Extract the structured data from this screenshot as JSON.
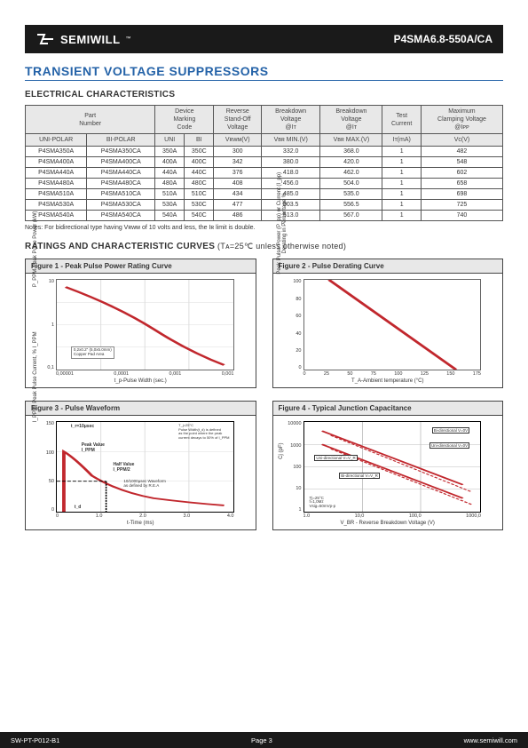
{
  "header": {
    "brand": "SEMIWILL",
    "tm": "™",
    "part": "P4SMA6.8-550A/CA"
  },
  "title": "TRANSIENT VOLTAGE SUPPRESSORS",
  "sections": {
    "ec": "ELECTRICAL CHARACTERISTICS",
    "curves": "RATINGS AND CHARACTERISTIC CURVES",
    "curves_note": " (Tᴀ=25℃ unless otherwise noted)"
  },
  "table": {
    "head": {
      "part": "Part\nNumber",
      "marking": "Device\nMarking\nCode",
      "standoff": "Reverse\nStand-Off\nVoltage",
      "br_min": "Breakdown\nVoltage\n@Iᴛ",
      "br_max": "Breakdown\nVoltage\n@Iᴛ",
      "test": "Test\nCurrent",
      "clamp": "Maximum\nClamping Voltage\n@Iᴘᴘ",
      "sub_uni": "UNI-POLAR",
      "sub_bi": "BI-POLAR",
      "sub_uni2": "UNI",
      "sub_bi2": "BI",
      "sub_vrwm": "Vʀᴡᴍ(V)",
      "sub_vbrmin": "Vʙʀ MIN.(V)",
      "sub_vbrmax": "Vʙʀ MAX.(V)",
      "sub_it": "Iᴛ(mA)",
      "sub_vc": "Vᴄ(V)"
    },
    "rows": [
      {
        "uni": "P4SMA350A",
        "bi": "P4SMA350CA",
        "m1": "350A",
        "m2": "350C",
        "v1": "300",
        "v2": "332.0",
        "v3": "368.0",
        "it": "1",
        "vc": "482"
      },
      {
        "uni": "P4SMA400A",
        "bi": "P4SMA400CA",
        "m1": "400A",
        "m2": "400C",
        "v1": "342",
        "v2": "380.0",
        "v3": "420.0",
        "it": "1",
        "vc": "548"
      },
      {
        "uni": "P4SMA440A",
        "bi": "P4SMA440CA",
        "m1": "440A",
        "m2": "440C",
        "v1": "376",
        "v2": "418.0",
        "v3": "462.0",
        "it": "1",
        "vc": "602"
      },
      {
        "uni": "P4SMA480A",
        "bi": "P4SMA480CA",
        "m1": "480A",
        "m2": "480C",
        "v1": "408",
        "v2": "456.0",
        "v3": "504.0",
        "it": "1",
        "vc": "658"
      },
      {
        "uni": "P4SMA510A",
        "bi": "P4SMA510CA",
        "m1": "510A",
        "m2": "510C",
        "v1": "434",
        "v2": "485.0",
        "v3": "535.0",
        "it": "1",
        "vc": "698"
      },
      {
        "uni": "P4SMA530A",
        "bi": "P4SMA530CA",
        "m1": "530A",
        "m2": "530C",
        "v1": "477",
        "v2": "503.5",
        "v3": "556.5",
        "it": "1",
        "vc": "725"
      },
      {
        "uni": "P4SMA540A",
        "bi": "P4SMA540CA",
        "m1": "540A",
        "m2": "540C",
        "v1": "486",
        "v2": "513.0",
        "v3": "567.0",
        "it": "1",
        "vc": "740"
      }
    ]
  },
  "note": "Notes: For bidirectional type having Vʀᴡᴍ of 10 volts and less, the Iʀ limit is double.",
  "figures": {
    "f1": {
      "title": "Figure 1 - Peak Pulse Power Rating Curve",
      "ylabel": "P_PPM-Peak Pulse Power (kW)",
      "xlabel": "t_p-Pulse Width (sec.)",
      "yticks": [
        "10",
        "1",
        "0,1"
      ],
      "xticks": [
        "0,00001",
        "0,0001",
        "0,001",
        "0,001"
      ],
      "note1": "0,2x0.2\" (5,0x5.0mm)",
      "note2": "Copper Pad Area",
      "line_color": "#c1272d"
    },
    "f2": {
      "title": "Figure 2 - Pulse Derating Curve",
      "ylabel": "Peak Pulse Power (P_pp) or Current (I_pp)\nDerating in Percentage %",
      "xlabel": "T_A-Ambient temperature (°C)",
      "yticks": [
        "100",
        "80",
        "60",
        "40",
        "20",
        "0"
      ],
      "xticks": [
        "0",
        "25",
        "50",
        "75",
        "100",
        "125",
        "150",
        "175"
      ],
      "line_color": "#c1272d"
    },
    "f3": {
      "title": "Figure 3 - Pulse Waveform",
      "ylabel": "I_PPM: Peak Pulse Current, % I_PPM",
      "xlabel": "t-Time (ms)",
      "yticks": [
        "150",
        "100",
        "50",
        "0"
      ],
      "xticks": [
        "0",
        "1.0",
        "2.0",
        "3.0",
        "4.0"
      ],
      "ann_tr": "t_r=10μsec",
      "ann_pv": "Peak Value\nI_PPM",
      "ann_hv": "Half Value\nI_PPM/2",
      "ann_td": "t_d",
      "ann_cond1": "T_j=25°C\nPulse Width(t_d) is defined\nas the point where the peak\ncurrent decays to 50% of I_PPM",
      "ann_cond2": "10/1000μsec Waveform\nas defined by R.E.A",
      "line_color": "#c1272d"
    },
    "f4": {
      "title": "Figure 4 - Typical Junction Capacitance",
      "ylabel": "Cj (pF)",
      "xlabel": "V_BR - Reverse Breakdown Voltage (V)",
      "yticks": [
        "10000",
        "1000",
        "100",
        "10",
        "1"
      ],
      "xticks": [
        "1.0",
        "10,0",
        "100,0",
        "1000,0"
      ],
      "legend1": "Bi-directional V=0V",
      "legend2": "Uni-directional V=0V",
      "legend3": "Uni-directional V=V_R",
      "legend4": "Bi-directional V=V_R",
      "cond": "Tj=25°C\nf=1,0Mz\nVsig=50mVp-p",
      "line_color": "#c1272d"
    }
  },
  "footer": {
    "left": "SW-PT-P012-B1",
    "center": "Page 3",
    "right": "www.semiwill.com"
  },
  "colors": {
    "accent": "#2563a8",
    "curve": "#c1272d",
    "grid": "#dddddd"
  }
}
